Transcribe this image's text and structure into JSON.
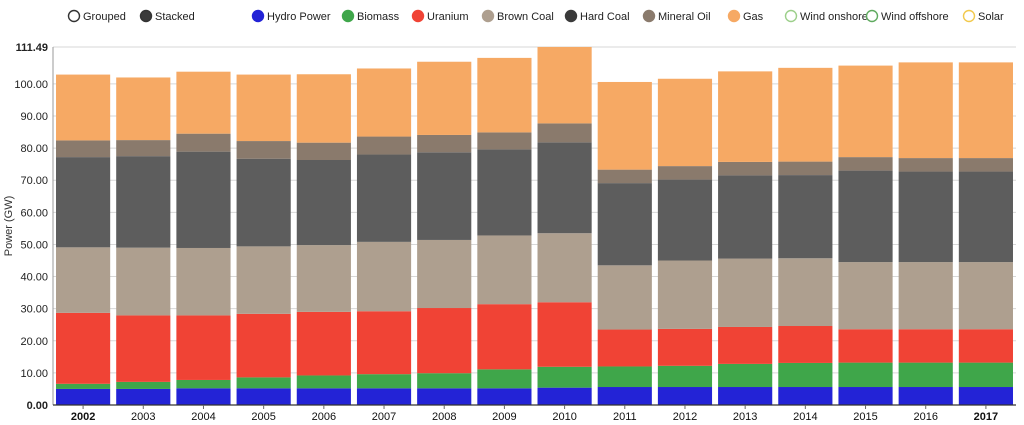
{
  "controls": {
    "grouped_label": "Grouped",
    "stacked_label": "Stacked",
    "selected": "Stacked"
  },
  "chart_data": {
    "type": "bar",
    "stacked": true,
    "ylabel": "Power (GW)",
    "xlabel": "",
    "ylim": [
      0,
      111.49
    ],
    "yticks": [
      "0.00",
      "10.00",
      "20.00",
      "30.00",
      "40.00",
      "50.00",
      "60.00",
      "70.00",
      "80.00",
      "90.00",
      "100.00",
      "111.49"
    ],
    "grid": true,
    "legend_position": "top",
    "highlighted_categories": [
      "2002",
      "2017"
    ],
    "categories": [
      "2002",
      "2003",
      "2004",
      "2005",
      "2006",
      "2007",
      "2008",
      "2009",
      "2010",
      "2011",
      "2012",
      "2013",
      "2014",
      "2015",
      "2016",
      "2017"
    ],
    "series": [
      {
        "name": "Hydro Power",
        "color": "#2323d6",
        "values": [
          5,
          5,
          5.2,
          5.2,
          5.2,
          5.2,
          5.2,
          5.2,
          5.4,
          5.6,
          5.6,
          5.6,
          5.6,
          5.6,
          5.6,
          5.6
        ]
      },
      {
        "name": "Biomass",
        "color": "#3fa64a",
        "values": [
          1.6,
          2.2,
          2.6,
          3.4,
          4,
          4.4,
          4.7,
          5.9,
          6.5,
          6.4,
          6.6,
          7.2,
          7.5,
          7.6,
          7.6,
          7.6
        ]
      },
      {
        "name": "Uranium",
        "color": "#f04335",
        "values": [
          22.1,
          20.7,
          20.1,
          19.8,
          19.8,
          19.6,
          20.3,
          20.3,
          20.1,
          11.5,
          11.5,
          11.5,
          11.5,
          10.4,
          10.4,
          10.4
        ]
      },
      {
        "name": "Brown Coal",
        "color": "#ae9f8f",
        "values": [
          20.4,
          21.1,
          21,
          21,
          20.8,
          21.6,
          21.2,
          21.4,
          21.5,
          20,
          21.3,
          21.3,
          21.1,
          20.9,
          20.9,
          20.9
        ]
      },
      {
        "name": "Hard Coal",
        "color": "#5d5d5d",
        "values": [
          28.1,
          28.5,
          30,
          27.3,
          26.5,
          27.2,
          27.3,
          26.8,
          28.3,
          25.6,
          25.2,
          25.9,
          25.9,
          28.5,
          28.2,
          28.2
        ]
      },
      {
        "name": "Mineral Oil",
        "color": "#8a7a6c",
        "values": [
          5.2,
          5,
          5.6,
          5.5,
          5.4,
          5.6,
          5.4,
          5.3,
          5.9,
          4.2,
          4.2,
          4.2,
          4.2,
          4.2,
          4.2,
          4.2
        ]
      },
      {
        "name": "Gas",
        "color": "#f6a964",
        "values": [
          20.5,
          19.5,
          19.3,
          20.7,
          21.3,
          21.2,
          22.8,
          23.2,
          23.8,
          27.3,
          27.2,
          28.2,
          29.2,
          28.5,
          29.8,
          29.8
        ]
      },
      {
        "name": "Wind onshore",
        "color": "#9ccf8a",
        "values": [
          0,
          0,
          0,
          0,
          0,
          0,
          0,
          0,
          0,
          0,
          0,
          0,
          0,
          0,
          0,
          0
        ]
      },
      {
        "name": "Wind offshore",
        "color": "#5faa5f",
        "values": [
          0,
          0,
          0,
          0,
          0,
          0,
          0,
          0,
          0,
          0,
          0,
          0,
          0,
          0,
          0,
          0
        ]
      },
      {
        "name": "Solar",
        "color": "#f2c94c",
        "values": [
          0,
          0,
          0,
          0,
          0,
          0,
          0,
          0,
          0,
          0,
          0,
          0,
          0,
          0,
          0,
          0
        ]
      }
    ],
    "legend": [
      {
        "label": "Hydro Power",
        "color": "#2323d6",
        "filled": true
      },
      {
        "label": "Biomass",
        "color": "#3fa64a",
        "filled": true
      },
      {
        "label": "Uranium",
        "color": "#f04335",
        "filled": true
      },
      {
        "label": "Brown Coal",
        "color": "#ae9f8f",
        "filled": true
      },
      {
        "label": "Hard Coal",
        "color": "#3a3a3a",
        "filled": true
      },
      {
        "label": "Mineral Oil",
        "color": "#8a7a6c",
        "filled": true
      },
      {
        "label": "Gas",
        "color": "#f6a964",
        "filled": true
      },
      {
        "label": "Wind onshore",
        "color": "#9ccf8a",
        "filled": false
      },
      {
        "label": "Wind offshore",
        "color": "#5faa5f",
        "filled": false
      },
      {
        "label": "Solar",
        "color": "#f2c94c",
        "filled": false
      }
    ]
  }
}
